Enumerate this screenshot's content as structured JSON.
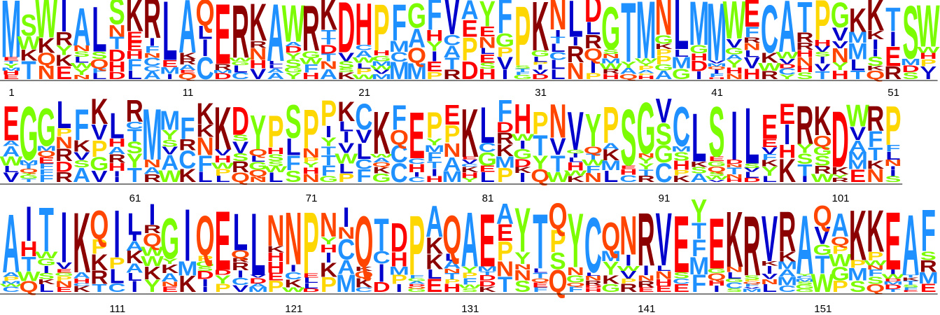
{
  "chart_data": {
    "type": "sequence-logo",
    "title": "",
    "xlabel": "",
    "ylabel": "",
    "tick_labels": [
      "1",
      "11",
      "21",
      "31",
      "41",
      "51",
      "61",
      "71",
      "81",
      "91",
      "101",
      "111",
      "121",
      "131",
      "141",
      "151"
    ],
    "row_ranges": [
      [
        1,
        53
      ],
      [
        54,
        104
      ],
      [
        105,
        157
      ]
    ],
    "color_scheme": {
      "acidic_DE": "#ff0000",
      "basic_KR": "#8b0000",
      "hydrophobic_LIMV": "#0000cc",
      "aromatic_FWY_H": "#ff0000",
      "small_ACST": "#1e90ff",
      "G": "#7cfc00",
      "P": "#ffd700",
      "NQ": "#ff4500"
    },
    "dominant_residues": [
      {
        "pos": 1,
        "letter": "M",
        "color": "#1e90ff"
      },
      {
        "pos": 2,
        "letter": "S",
        "color": "#7cfc00"
      },
      {
        "pos": 3,
        "letter": "W",
        "color": "#7cfc00"
      },
      {
        "pos": 4,
        "letter": "I",
        "color": "#0000cc"
      },
      {
        "pos": 5,
        "letter": "A",
        "color": "#1e90ff"
      },
      {
        "pos": 6,
        "letter": "L",
        "color": "#0000cc"
      },
      {
        "pos": 7,
        "letter": "S",
        "color": "#7cfc00"
      },
      {
        "pos": 8,
        "letter": "K",
        "color": "#8b0000"
      },
      {
        "pos": 9,
        "letter": "R",
        "color": "#8b0000"
      },
      {
        "pos": 10,
        "letter": "L",
        "color": "#0000cc"
      },
      {
        "pos": 11,
        "letter": "A",
        "color": "#1e90ff"
      },
      {
        "pos": 12,
        "letter": "Q",
        "color": "#ff4500"
      },
      {
        "pos": 13,
        "letter": "E",
        "color": "#ff0000"
      },
      {
        "pos": 14,
        "letter": "R",
        "color": "#8b0000"
      },
      {
        "pos": 15,
        "letter": "K",
        "color": "#8b0000"
      },
      {
        "pos": 16,
        "letter": "A",
        "color": "#1e90ff"
      },
      {
        "pos": 17,
        "letter": "W",
        "color": "#7cfc00"
      },
      {
        "pos": 18,
        "letter": "R",
        "color": "#8b0000"
      },
      {
        "pos": 19,
        "letter": "K",
        "color": "#8b0000"
      },
      {
        "pos": 20,
        "letter": "D",
        "color": "#ff0000"
      },
      {
        "pos": 21,
        "letter": "H",
        "color": "#ff0000"
      },
      {
        "pos": 22,
        "letter": "P",
        "color": "#ffd700"
      },
      {
        "pos": 23,
        "letter": "F",
        "color": "#1e90ff"
      },
      {
        "pos": 24,
        "letter": "G",
        "color": "#7cfc00"
      },
      {
        "pos": 25,
        "letter": "F",
        "color": "#1e90ff"
      },
      {
        "pos": 26,
        "letter": "V",
        "color": "#0000cc"
      },
      {
        "pos": 27,
        "letter": "A",
        "color": "#1e90ff"
      },
      {
        "pos": 28,
        "letter": "Y",
        "color": "#7cfc00"
      },
      {
        "pos": 29,
        "letter": "F",
        "color": "#1e90ff"
      },
      {
        "pos": 30,
        "letter": "P",
        "color": "#ffd700"
      },
      {
        "pos": 31,
        "letter": "K",
        "color": "#8b0000"
      },
      {
        "pos": 32,
        "letter": "N",
        "color": "#ff4500"
      },
      {
        "pos": 33,
        "letter": "L",
        "color": "#0000cc"
      },
      {
        "pos": 34,
        "letter": "D",
        "color": "#ff0000"
      },
      {
        "pos": 35,
        "letter": "G",
        "color": "#7cfc00"
      },
      {
        "pos": 36,
        "letter": "T",
        "color": "#1e90ff"
      },
      {
        "pos": 37,
        "letter": "M",
        "color": "#1e90ff"
      },
      {
        "pos": 38,
        "letter": "N",
        "color": "#ff4500"
      },
      {
        "pos": 39,
        "letter": "L",
        "color": "#0000cc"
      },
      {
        "pos": 40,
        "letter": "M",
        "color": "#1e90ff"
      },
      {
        "pos": 41,
        "letter": "M",
        "color": "#1e90ff"
      },
      {
        "pos": 42,
        "letter": "W",
        "color": "#7cfc00"
      },
      {
        "pos": 43,
        "letter": "E",
        "color": "#ff0000"
      },
      {
        "pos": 44,
        "letter": "C",
        "color": "#1e90ff"
      },
      {
        "pos": 45,
        "letter": "A",
        "color": "#1e90ff"
      },
      {
        "pos": 46,
        "letter": "T",
        "color": "#1e90ff"
      },
      {
        "pos": 47,
        "letter": "P",
        "color": "#ffd700"
      },
      {
        "pos": 48,
        "letter": "G",
        "color": "#7cfc00"
      },
      {
        "pos": 49,
        "letter": "K",
        "color": "#8b0000"
      },
      {
        "pos": 50,
        "letter": "K",
        "color": "#8b0000"
      },
      {
        "pos": 51,
        "letter": "T",
        "color": "#1e90ff"
      },
      {
        "pos": 52,
        "letter": "S",
        "color": "#7cfc00"
      },
      {
        "pos": 53,
        "letter": "W",
        "color": "#7cfc00"
      },
      {
        "pos": 54,
        "letter": "E",
        "color": "#ff0000"
      },
      {
        "pos": 55,
        "letter": "G",
        "color": "#7cfc00"
      },
      {
        "pos": 56,
        "letter": "G",
        "color": "#7cfc00"
      },
      {
        "pos": 57,
        "letter": "L",
        "color": "#0000cc"
      },
      {
        "pos": 58,
        "letter": "F",
        "color": "#1e90ff"
      },
      {
        "pos": 59,
        "letter": "K",
        "color": "#8b0000"
      },
      {
        "pos": 60,
        "letter": "L",
        "color": "#0000cc"
      },
      {
        "pos": 61,
        "letter": "R",
        "color": "#8b0000"
      },
      {
        "pos": 62,
        "letter": "M",
        "color": "#1e90ff"
      },
      {
        "pos": 63,
        "letter": "M",
        "color": "#1e90ff"
      },
      {
        "pos": 64,
        "letter": "F",
        "color": "#1e90ff"
      },
      {
        "pos": 65,
        "letter": "K",
        "color": "#8b0000"
      },
      {
        "pos": 66,
        "letter": "K",
        "color": "#8b0000"
      },
      {
        "pos": 67,
        "letter": "D",
        "color": "#ff0000"
      },
      {
        "pos": 68,
        "letter": "Y",
        "color": "#7cfc00"
      },
      {
        "pos": 69,
        "letter": "P",
        "color": "#ffd700"
      },
      {
        "pos": 70,
        "letter": "S",
        "color": "#7cfc00"
      },
      {
        "pos": 71,
        "letter": "P",
        "color": "#ffd700"
      },
      {
        "pos": 72,
        "letter": "P",
        "color": "#ffd700"
      },
      {
        "pos": 73,
        "letter": "K",
        "color": "#8b0000"
      },
      {
        "pos": 74,
        "letter": "C",
        "color": "#1e90ff"
      },
      {
        "pos": 75,
        "letter": "K",
        "color": "#8b0000"
      },
      {
        "pos": 76,
        "letter": "F",
        "color": "#1e90ff"
      },
      {
        "pos": 77,
        "letter": "E",
        "color": "#ff0000"
      },
      {
        "pos": 78,
        "letter": "P",
        "color": "#ffd700"
      },
      {
        "pos": 79,
        "letter": "E",
        "color": "#ff0000"
      },
      {
        "pos": 80,
        "letter": "K",
        "color": "#8b0000"
      },
      {
        "pos": 81,
        "letter": "L",
        "color": "#0000cc"
      },
      {
        "pos": 82,
        "letter": "F",
        "color": "#1e90ff"
      },
      {
        "pos": 83,
        "letter": "H",
        "color": "#ff0000"
      },
      {
        "pos": 84,
        "letter": "P",
        "color": "#ffd700"
      },
      {
        "pos": 85,
        "letter": "N",
        "color": "#ff4500"
      },
      {
        "pos": 86,
        "letter": "V",
        "color": "#0000cc"
      },
      {
        "pos": 87,
        "letter": "Y",
        "color": "#7cfc00"
      },
      {
        "pos": 88,
        "letter": "P",
        "color": "#ffd700"
      },
      {
        "pos": 89,
        "letter": "S",
        "color": "#7cfc00"
      },
      {
        "pos": 90,
        "letter": "G",
        "color": "#7cfc00"
      },
      {
        "pos": 91,
        "letter": "V",
        "color": "#0000cc"
      },
      {
        "pos": 92,
        "letter": "C",
        "color": "#1e90ff"
      },
      {
        "pos": 93,
        "letter": "L",
        "color": "#0000cc"
      },
      {
        "pos": 94,
        "letter": "S",
        "color": "#7cfc00"
      },
      {
        "pos": 95,
        "letter": "I",
        "color": "#0000cc"
      },
      {
        "pos": 96,
        "letter": "L",
        "color": "#0000cc"
      },
      {
        "pos": 97,
        "letter": "E",
        "color": "#ff0000"
      },
      {
        "pos": 98,
        "letter": "E",
        "color": "#ff0000"
      },
      {
        "pos": 99,
        "letter": "R",
        "color": "#8b0000"
      },
      {
        "pos": 100,
        "letter": "K",
        "color": "#8b0000"
      },
      {
        "pos": 101,
        "letter": "D",
        "color": "#ff0000"
      },
      {
        "pos": 102,
        "letter": "W",
        "color": "#7cfc00"
      },
      {
        "pos": 103,
        "letter": "R",
        "color": "#8b0000"
      },
      {
        "pos": 104,
        "letter": "P",
        "color": "#ffd700"
      },
      {
        "pos": 105,
        "letter": "A",
        "color": "#1e90ff"
      },
      {
        "pos": 106,
        "letter": "I",
        "color": "#0000cc"
      },
      {
        "pos": 107,
        "letter": "T",
        "color": "#1e90ff"
      },
      {
        "pos": 108,
        "letter": "I",
        "color": "#0000cc"
      },
      {
        "pos": 109,
        "letter": "K",
        "color": "#8b0000"
      },
      {
        "pos": 110,
        "letter": "Q",
        "color": "#ff4500"
      },
      {
        "pos": 111,
        "letter": "I",
        "color": "#0000cc"
      },
      {
        "pos": 112,
        "letter": "L",
        "color": "#0000cc"
      },
      {
        "pos": 113,
        "letter": "I",
        "color": "#0000cc"
      },
      {
        "pos": 114,
        "letter": "G",
        "color": "#7cfc00"
      },
      {
        "pos": 115,
        "letter": "I",
        "color": "#0000cc"
      },
      {
        "pos": 116,
        "letter": "Q",
        "color": "#ff4500"
      },
      {
        "pos": 117,
        "letter": "E",
        "color": "#ff0000"
      },
      {
        "pos": 118,
        "letter": "L",
        "color": "#0000cc"
      },
      {
        "pos": 119,
        "letter": "L",
        "color": "#0000cc"
      },
      {
        "pos": 120,
        "letter": "N",
        "color": "#ff4500"
      },
      {
        "pos": 121,
        "letter": "N",
        "color": "#ff4500"
      },
      {
        "pos": 122,
        "letter": "P",
        "color": "#ffd700"
      },
      {
        "pos": 123,
        "letter": "N",
        "color": "#ff4500"
      },
      {
        "pos": 124,
        "letter": "I",
        "color": "#0000cc"
      },
      {
        "pos": 125,
        "letter": "Q",
        "color": "#ff4500"
      },
      {
        "pos": 126,
        "letter": "T",
        "color": "#1e90ff"
      },
      {
        "pos": 127,
        "letter": "D",
        "color": "#ff0000"
      },
      {
        "pos": 128,
        "letter": "P",
        "color": "#ffd700"
      },
      {
        "pos": 129,
        "letter": "A",
        "color": "#1e90ff"
      },
      {
        "pos": 130,
        "letter": "Q",
        "color": "#ff4500"
      },
      {
        "pos": 131,
        "letter": "A",
        "color": "#1e90ff"
      },
      {
        "pos": 132,
        "letter": "E",
        "color": "#ff0000"
      },
      {
        "pos": 133,
        "letter": "A",
        "color": "#1e90ff"
      },
      {
        "pos": 134,
        "letter": "Y",
        "color": "#7cfc00"
      },
      {
        "pos": 135,
        "letter": "T",
        "color": "#1e90ff"
      },
      {
        "pos": 136,
        "letter": "Q",
        "color": "#ff4500"
      },
      {
        "pos": 137,
        "letter": "Y",
        "color": "#7cfc00"
      },
      {
        "pos": 138,
        "letter": "C",
        "color": "#1e90ff"
      },
      {
        "pos": 139,
        "letter": "Q",
        "color": "#ff4500"
      },
      {
        "pos": 140,
        "letter": "N",
        "color": "#ff4500"
      },
      {
        "pos": 141,
        "letter": "R",
        "color": "#8b0000"
      },
      {
        "pos": 142,
        "letter": "V",
        "color": "#0000cc"
      },
      {
        "pos": 143,
        "letter": "E",
        "color": "#ff0000"
      },
      {
        "pos": 144,
        "letter": "Y",
        "color": "#7cfc00"
      },
      {
        "pos": 145,
        "letter": "E",
        "color": "#ff0000"
      },
      {
        "pos": 146,
        "letter": "K",
        "color": "#8b0000"
      },
      {
        "pos": 147,
        "letter": "R",
        "color": "#8b0000"
      },
      {
        "pos": 148,
        "letter": "V",
        "color": "#0000cc"
      },
      {
        "pos": 149,
        "letter": "R",
        "color": "#8b0000"
      },
      {
        "pos": 150,
        "letter": "A",
        "color": "#1e90ff"
      },
      {
        "pos": 151,
        "letter": "Q",
        "color": "#ff4500"
      },
      {
        "pos": 152,
        "letter": "A",
        "color": "#1e90ff"
      },
      {
        "pos": 153,
        "letter": "K",
        "color": "#8b0000"
      },
      {
        "pos": 154,
        "letter": "K",
        "color": "#8b0000"
      },
      {
        "pos": 155,
        "letter": "E",
        "color": "#ff0000"
      },
      {
        "pos": 156,
        "letter": "A",
        "color": "#1e90ff"
      },
      {
        "pos": 157,
        "letter": "F",
        "color": "#1e90ff"
      }
    ]
  }
}
